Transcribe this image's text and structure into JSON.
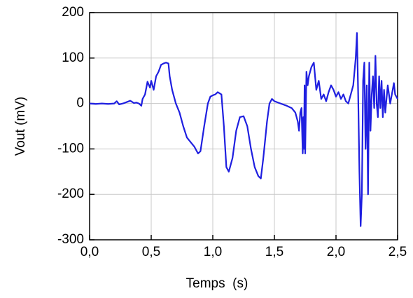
{
  "chart_data": {
    "type": "line",
    "xlabel": "Temps  (s)",
    "ylabel": "Vout (mV)",
    "color": "#1f1fe0",
    "grid": true,
    "xlim": [
      0,
      2.5
    ],
    "xticks": [
      {
        "value": 0,
        "label": "0,0"
      },
      {
        "value": 0.5,
        "label": "0,5"
      },
      {
        "value": 1,
        "label": "1,0"
      },
      {
        "value": 1.5,
        "label": "1,5"
      },
      {
        "value": 2,
        "label": "2,0"
      },
      {
        "value": 2.5,
        "label": "2,5"
      }
    ],
    "ylim": [
      -300,
      200
    ],
    "yticks": [
      -300,
      -200,
      -100,
      0,
      100,
      200
    ],
    "x": [
      0.0,
      0.05,
      0.1,
      0.15,
      0.2,
      0.22,
      0.24,
      0.27,
      0.3,
      0.33,
      0.36,
      0.38,
      0.4,
      0.42,
      0.43,
      0.45,
      0.47,
      0.49,
      0.5,
      0.52,
      0.54,
      0.56,
      0.58,
      0.6,
      0.62,
      0.64,
      0.65,
      0.67,
      0.7,
      0.73,
      0.76,
      0.79,
      0.82,
      0.85,
      0.88,
      0.9,
      0.93,
      0.96,
      0.98,
      1.0,
      1.02,
      1.04,
      1.07,
      1.09,
      1.11,
      1.13,
      1.16,
      1.19,
      1.22,
      1.25,
      1.28,
      1.31,
      1.34,
      1.37,
      1.39,
      1.41,
      1.44,
      1.46,
      1.48,
      1.5,
      1.55,
      1.6,
      1.64,
      1.67,
      1.69,
      1.7,
      1.71,
      1.72,
      1.73,
      1.735,
      1.74,
      1.745,
      1.75,
      1.76,
      1.77,
      1.78,
      1.8,
      1.82,
      1.84,
      1.86,
      1.88,
      1.9,
      1.92,
      1.94,
      1.96,
      1.98,
      2.0,
      2.02,
      2.04,
      2.06,
      2.08,
      2.1,
      2.12,
      2.14,
      2.16,
      2.17,
      2.18,
      2.19,
      2.2,
      2.21,
      2.22,
      2.23,
      2.24,
      2.25,
      2.26,
      2.27,
      2.28,
      2.29,
      2.3,
      2.31,
      2.32,
      2.33,
      2.34,
      2.35,
      2.36,
      2.37,
      2.38,
      2.39,
      2.4,
      2.42,
      2.44,
      2.46,
      2.47,
      2.48,
      2.5
    ],
    "values": [
      0,
      -1,
      0,
      -1,
      0,
      5,
      -2,
      0,
      3,
      6,
      1,
      2,
      0,
      -5,
      10,
      20,
      48,
      35,
      50,
      30,
      60,
      70,
      85,
      88,
      90,
      88,
      60,
      30,
      0,
      -20,
      -50,
      -75,
      -85,
      -95,
      -110,
      -105,
      -50,
      0,
      15,
      18,
      20,
      25,
      20,
      -50,
      -140,
      -150,
      -120,
      -60,
      -30,
      -28,
      -50,
      -100,
      -140,
      -160,
      -165,
      -120,
      -40,
      0,
      10,
      5,
      0,
      -5,
      -10,
      -20,
      -40,
      -60,
      -20,
      -10,
      -110,
      -30,
      -100,
      40,
      -110,
      70,
      40,
      60,
      80,
      90,
      30,
      50,
      10,
      20,
      5,
      25,
      40,
      30,
      15,
      25,
      10,
      20,
      5,
      0,
      20,
      40,
      100,
      155,
      20,
      -150,
      -270,
      -200,
      50,
      90,
      -100,
      40,
      -200,
      90,
      -60,
      20,
      60,
      -10,
      105,
      0,
      -30,
      60,
      -10,
      50,
      -30,
      30,
      -20,
      40,
      0,
      30,
      45,
      20,
      10
    ]
  }
}
